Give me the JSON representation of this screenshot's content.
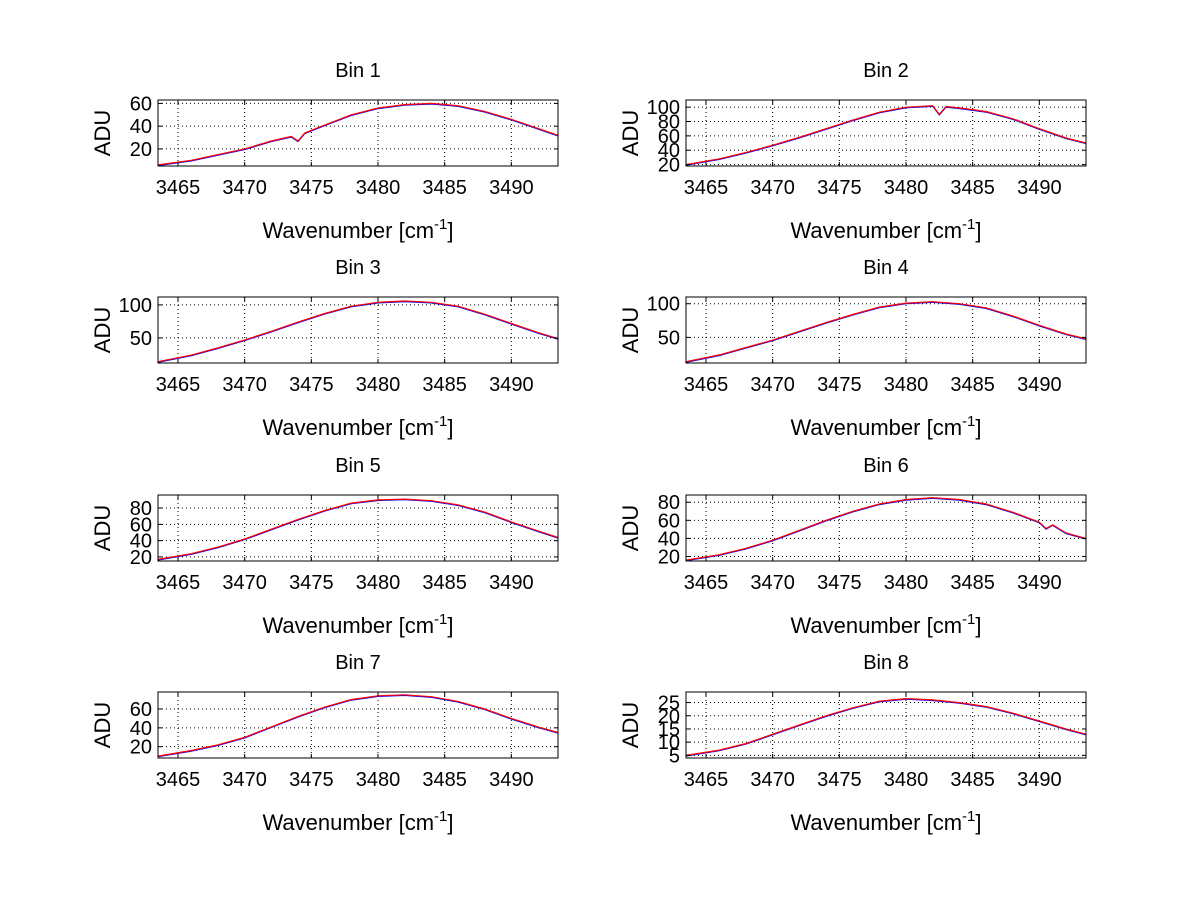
{
  "figure": {
    "background": "#ffffff",
    "series_colors": [
      "#0000ff",
      "#ff0000"
    ],
    "grid_style": "dotted"
  },
  "chart_data": [
    {
      "type": "line",
      "title": "Bin 1",
      "xlabel": "Wavenumber [cm-1]",
      "ylabel": "ADU",
      "xlim": [
        3463.5,
        3493.5
      ],
      "ylim": [
        5,
        63
      ],
      "xticks": [
        3465,
        3470,
        3475,
        3480,
        3485,
        3490
      ],
      "yticks": [
        20,
        40,
        60
      ],
      "grid": true,
      "x": [
        3463.5,
        3466,
        3468,
        3470,
        3472,
        3473.5,
        3474,
        3474.5,
        3476,
        3478,
        3480,
        3482,
        3484,
        3486,
        3488,
        3490,
        3492,
        3493.5
      ],
      "series": [
        {
          "values": [
            6,
            10,
            15,
            20,
            27,
            31,
            27,
            34,
            41,
            50,
            56,
            59,
            60,
            58,
            53,
            46,
            38,
            32
          ]
        }
      ]
    },
    {
      "type": "line",
      "title": "Bin 2",
      "xlabel": "Wavenumber [cm-1]",
      "ylabel": "ADU",
      "xlim": [
        3463.5,
        3493.5
      ],
      "ylim": [
        18,
        110
      ],
      "xticks": [
        3465,
        3470,
        3475,
        3480,
        3485,
        3490
      ],
      "yticks": [
        20,
        40,
        60,
        80,
        100
      ],
      "grid": true,
      "x": [
        3463.5,
        3466,
        3468,
        3470,
        3472,
        3474,
        3476,
        3478,
        3480,
        3482,
        3482.5,
        3483,
        3484,
        3486,
        3488,
        3490,
        3492,
        3493.5
      ],
      "series": [
        {
          "values": [
            20,
            28,
            37,
            47,
            58,
            70,
            82,
            93,
            100,
            102,
            90,
            101,
            99,
            94,
            84,
            70,
            57,
            50
          ]
        }
      ]
    },
    {
      "type": "line",
      "title": "Bin 3",
      "xlabel": "Wavenumber [cm-1]",
      "ylabel": "ADU",
      "xlim": [
        3463.5,
        3493.5
      ],
      "ylim": [
        12,
        112
      ],
      "xticks": [
        3465,
        3470,
        3475,
        3480,
        3485,
        3490
      ],
      "yticks": [
        50,
        100
      ],
      "grid": true,
      "x": [
        3463.5,
        3466,
        3468,
        3470,
        3472,
        3474,
        3476,
        3478,
        3480,
        3482,
        3484,
        3486,
        3488,
        3490,
        3492,
        3493.5
      ],
      "series": [
        {
          "values": [
            14,
            24,
            35,
            47,
            60,
            74,
            87,
            98,
            104,
            106,
            104,
            98,
            86,
            72,
            58,
            49
          ]
        }
      ]
    },
    {
      "type": "line",
      "title": "Bin 4",
      "xlabel": "Wavenumber [cm-1]",
      "ylabel": "ADU",
      "xlim": [
        3463.5,
        3493.5
      ],
      "ylim": [
        12,
        110
      ],
      "xticks": [
        3465,
        3470,
        3475,
        3480,
        3485,
        3490
      ],
      "yticks": [
        50,
        100
      ],
      "grid": true,
      "x": [
        3463.5,
        3466,
        3468,
        3470,
        3472,
        3474,
        3476,
        3478,
        3480,
        3482,
        3484,
        3486,
        3488,
        3490,
        3492,
        3493.5
      ],
      "series": [
        {
          "values": [
            14,
            24,
            35,
            46,
            59,
            72,
            84,
            95,
            101,
            103,
            100,
            94,
            82,
            68,
            55,
            48
          ]
        }
      ]
    },
    {
      "type": "line",
      "title": "Bin 5",
      "xlabel": "Wavenumber [cm-1]",
      "ylabel": "ADU",
      "xlim": [
        3463.5,
        3493.5
      ],
      "ylim": [
        15,
        96
      ],
      "xticks": [
        3465,
        3470,
        3475,
        3480,
        3485,
        3490
      ],
      "yticks": [
        20,
        40,
        60,
        80
      ],
      "grid": true,
      "x": [
        3463.5,
        3466,
        3468,
        3470,
        3472,
        3474,
        3476,
        3478,
        3480,
        3482,
        3484,
        3486,
        3488,
        3490,
        3492,
        3493.5
      ],
      "series": [
        {
          "values": [
            17,
            24,
            32,
            42,
            54,
            66,
            77,
            86,
            90,
            91,
            89,
            84,
            75,
            63,
            52,
            44
          ]
        }
      ]
    },
    {
      "type": "line",
      "title": "Bin 6",
      "xlabel": "Wavenumber [cm-1]",
      "ylabel": "ADU",
      "xlim": [
        3463.5,
        3493.5
      ],
      "ylim": [
        15,
        88
      ],
      "xticks": [
        3465,
        3470,
        3475,
        3480,
        3485,
        3490
      ],
      "yticks": [
        20,
        40,
        60,
        80
      ],
      "grid": true,
      "x": [
        3463.5,
        3466,
        3468,
        3470,
        3472,
        3474,
        3476,
        3478,
        3480,
        3482,
        3484,
        3486,
        3488,
        3490,
        3490.5,
        3491,
        3492,
        3493.5
      ],
      "series": [
        {
          "values": [
            16,
            22,
            29,
            38,
            49,
            60,
            70,
            78,
            83,
            85,
            83,
            78,
            69,
            58,
            51,
            55,
            46,
            40
          ]
        }
      ]
    },
    {
      "type": "line",
      "title": "Bin 7",
      "xlabel": "Wavenumber [cm-1]",
      "ylabel": "ADU",
      "xlim": [
        3463.5,
        3493.5
      ],
      "ylim": [
        8,
        78
      ],
      "xticks": [
        3465,
        3470,
        3475,
        3480,
        3485,
        3490
      ],
      "yticks": [
        20,
        40,
        60
      ],
      "grid": true,
      "x": [
        3463.5,
        3466,
        3468,
        3470,
        3472,
        3474,
        3476,
        3478,
        3480,
        3482,
        3484,
        3486,
        3488,
        3490,
        3492,
        3493.5
      ],
      "series": [
        {
          "values": [
            10,
            16,
            22,
            30,
            41,
            52,
            62,
            70,
            74,
            75,
            73,
            68,
            60,
            50,
            41,
            35
          ]
        }
      ]
    },
    {
      "type": "line",
      "title": "Bin 8",
      "xlabel": "Wavenumber [cm-1]",
      "ylabel": "ADU",
      "xlim": [
        3463.5,
        3493.5
      ],
      "ylim": [
        4,
        29
      ],
      "xticks": [
        3465,
        3470,
        3475,
        3480,
        3485,
        3490
      ],
      "yticks": [
        5,
        10,
        15,
        20,
        25
      ],
      "grid": true,
      "x": [
        3463.5,
        3466,
        3468,
        3470,
        3472,
        3474,
        3476,
        3478,
        3480,
        3482,
        3484,
        3486,
        3488,
        3490,
        3492,
        3493.5
      ],
      "series": [
        {
          "values": [
            5,
            7,
            9.5,
            13,
            16.5,
            20,
            23,
            25.5,
            26.5,
            26,
            25,
            23.5,
            21,
            18,
            15,
            13
          ]
        }
      ]
    }
  ]
}
